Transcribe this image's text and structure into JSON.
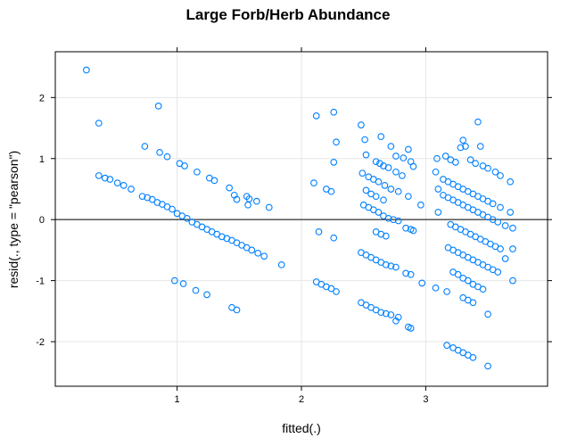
{
  "chart_data": {
    "type": "scatter",
    "title": "Large Forb/Herb Abundance",
    "xlabel": "fitted(.)",
    "ylabel": "resid(., type = \"pearson\")",
    "xlim": [
      0.02,
      3.98
    ],
    "ylim": [
      -2.73,
      2.75
    ],
    "xticks": [
      1,
      2,
      3
    ],
    "yticks": [
      -2,
      -1,
      0,
      1,
      2
    ],
    "reference_line_y": 0,
    "grid": true,
    "point_color": "#0080ff",
    "groups": [
      {
        "x0": 0.27,
        "x1": 1.84,
        "intercept": 0.95,
        "slope": -0.9
      },
      {
        "x0": 0.36,
        "x1": 1.52,
        "intercept": 2.25,
        "slope": -0.95
      },
      {
        "x0": 0.9,
        "x1": 1.5,
        "intercept": -0.38,
        "slope": -0.75
      },
      {
        "x0": 2.1,
        "x1": 2.3,
        "intercept": 0.0,
        "slope": 0.0
      },
      {
        "x0": 2.48,
        "x1": 2.92,
        "intercept": 0.0,
        "slope": -0.5
      },
      {
        "x0": 3.1,
        "x1": 3.72,
        "intercept": 0.0,
        "slope": -0.42
      }
    ],
    "points": [
      {
        "x": 0.27,
        "y": 2.45
      },
      {
        "x": 0.37,
        "y": 1.58
      },
      {
        "x": 0.85,
        "y": 1.86
      },
      {
        "x": 0.37,
        "y": 0.72
      },
      {
        "x": 0.42,
        "y": 0.68
      },
      {
        "x": 0.46,
        "y": 0.66
      },
      {
        "x": 0.52,
        "y": 0.6
      },
      {
        "x": 0.57,
        "y": 0.56
      },
      {
        "x": 0.63,
        "y": 0.5
      },
      {
        "x": 0.72,
        "y": 0.38
      },
      {
        "x": 0.76,
        "y": 0.36
      },
      {
        "x": 0.8,
        "y": 0.33
      },
      {
        "x": 0.84,
        "y": 0.28
      },
      {
        "x": 0.88,
        "y": 0.25
      },
      {
        "x": 0.92,
        "y": 0.21
      },
      {
        "x": 0.96,
        "y": 0.17
      },
      {
        "x": 1.0,
        "y": 0.1
      },
      {
        "x": 1.04,
        "y": 0.06
      },
      {
        "x": 1.08,
        "y": 0.02
      },
      {
        "x": 1.12,
        "y": -0.04
      },
      {
        "x": 1.16,
        "y": -0.08
      },
      {
        "x": 1.2,
        "y": -0.12
      },
      {
        "x": 1.24,
        "y": -0.16
      },
      {
        "x": 1.28,
        "y": -0.2
      },
      {
        "x": 1.32,
        "y": -0.24
      },
      {
        "x": 1.36,
        "y": -0.28
      },
      {
        "x": 1.4,
        "y": -0.31
      },
      {
        "x": 1.44,
        "y": -0.34
      },
      {
        "x": 1.48,
        "y": -0.38
      },
      {
        "x": 1.52,
        "y": -0.42
      },
      {
        "x": 1.56,
        "y": -0.46
      },
      {
        "x": 1.6,
        "y": -0.5
      },
      {
        "x": 1.65,
        "y": -0.55
      },
      {
        "x": 1.7,
        "y": -0.6
      },
      {
        "x": 1.84,
        "y": -0.74
      },
      {
        "x": 0.74,
        "y": 1.2
      },
      {
        "x": 0.86,
        "y": 1.1
      },
      {
        "x": 0.92,
        "y": 1.03
      },
      {
        "x": 1.02,
        "y": 0.92
      },
      {
        "x": 1.06,
        "y": 0.88
      },
      {
        "x": 1.16,
        "y": 0.78
      },
      {
        "x": 1.26,
        "y": 0.68
      },
      {
        "x": 1.3,
        "y": 0.64
      },
      {
        "x": 1.42,
        "y": 0.52
      },
      {
        "x": 1.46,
        "y": 0.4
      },
      {
        "x": 1.48,
        "y": 0.33
      },
      {
        "x": 1.56,
        "y": 0.38
      },
      {
        "x": 1.58,
        "y": 0.34
      },
      {
        "x": 1.64,
        "y": 0.3
      },
      {
        "x": 1.74,
        "y": 0.2
      },
      {
        "x": 1.57,
        "y": 0.24
      },
      {
        "x": 0.98,
        "y": -1.0
      },
      {
        "x": 1.05,
        "y": -1.05
      },
      {
        "x": 1.15,
        "y": -1.16
      },
      {
        "x": 1.24,
        "y": -1.23
      },
      {
        "x": 1.44,
        "y": -1.44
      },
      {
        "x": 1.48,
        "y": -1.48
      },
      {
        "x": 2.12,
        "y": 1.7
      },
      {
        "x": 2.26,
        "y": 1.76
      },
      {
        "x": 2.28,
        "y": 1.27
      },
      {
        "x": 2.26,
        "y": 0.94
      },
      {
        "x": 2.1,
        "y": 0.6
      },
      {
        "x": 2.2,
        "y": 0.5
      },
      {
        "x": 2.24,
        "y": 0.46
      },
      {
        "x": 2.14,
        "y": -0.2
      },
      {
        "x": 2.26,
        "y": -0.3
      },
      {
        "x": 2.12,
        "y": -1.02
      },
      {
        "x": 2.16,
        "y": -1.06
      },
      {
        "x": 2.2,
        "y": -1.1
      },
      {
        "x": 2.24,
        "y": -1.13
      },
      {
        "x": 2.28,
        "y": -1.18
      },
      {
        "x": 2.48,
        "y": 1.55
      },
      {
        "x": 2.51,
        "y": 1.31
      },
      {
        "x": 2.64,
        "y": 1.36
      },
      {
        "x": 2.72,
        "y": 1.2
      },
      {
        "x": 2.76,
        "y": 1.04
      },
      {
        "x": 2.82,
        "y": 1.01
      },
      {
        "x": 2.86,
        "y": 1.15
      },
      {
        "x": 2.88,
        "y": 0.95
      },
      {
        "x": 2.9,
        "y": 0.87
      },
      {
        "x": 2.52,
        "y": 1.06
      },
      {
        "x": 2.6,
        "y": 0.95
      },
      {
        "x": 2.63,
        "y": 0.92
      },
      {
        "x": 2.66,
        "y": 0.88
      },
      {
        "x": 2.7,
        "y": 0.85
      },
      {
        "x": 2.76,
        "y": 0.78
      },
      {
        "x": 2.81,
        "y": 0.72
      },
      {
        "x": 2.49,
        "y": 0.76
      },
      {
        "x": 2.54,
        "y": 0.7
      },
      {
        "x": 2.58,
        "y": 0.66
      },
      {
        "x": 2.62,
        "y": 0.62
      },
      {
        "x": 2.67,
        "y": 0.56
      },
      {
        "x": 2.72,
        "y": 0.5
      },
      {
        "x": 2.78,
        "y": 0.46
      },
      {
        "x": 2.86,
        "y": 0.38
      },
      {
        "x": 2.52,
        "y": 0.48
      },
      {
        "x": 2.56,
        "y": 0.42
      },
      {
        "x": 2.6,
        "y": 0.38
      },
      {
        "x": 2.66,
        "y": 0.32
      },
      {
        "x": 2.5,
        "y": 0.24
      },
      {
        "x": 2.54,
        "y": 0.2
      },
      {
        "x": 2.58,
        "y": 0.16
      },
      {
        "x": 2.62,
        "y": 0.12
      },
      {
        "x": 2.66,
        "y": 0.06
      },
      {
        "x": 2.7,
        "y": 0.02
      },
      {
        "x": 2.74,
        "y": 0.0
      },
      {
        "x": 2.78,
        "y": -0.02
      },
      {
        "x": 2.84,
        "y": -0.14
      },
      {
        "x": 2.88,
        "y": -0.16
      },
      {
        "x": 2.9,
        "y": -0.18
      },
      {
        "x": 2.6,
        "y": -0.2
      },
      {
        "x": 2.64,
        "y": -0.24
      },
      {
        "x": 2.68,
        "y": -0.27
      },
      {
        "x": 2.48,
        "y": -0.54
      },
      {
        "x": 2.52,
        "y": -0.58
      },
      {
        "x": 2.56,
        "y": -0.62
      },
      {
        "x": 2.6,
        "y": -0.66
      },
      {
        "x": 2.64,
        "y": -0.7
      },
      {
        "x": 2.68,
        "y": -0.74
      },
      {
        "x": 2.72,
        "y": -0.76
      },
      {
        "x": 2.76,
        "y": -0.78
      },
      {
        "x": 2.84,
        "y": -0.88
      },
      {
        "x": 2.88,
        "y": -0.9
      },
      {
        "x": 2.48,
        "y": -1.36
      },
      {
        "x": 2.52,
        "y": -1.4
      },
      {
        "x": 2.56,
        "y": -1.44
      },
      {
        "x": 2.6,
        "y": -1.48
      },
      {
        "x": 2.64,
        "y": -1.52
      },
      {
        "x": 2.68,
        "y": -1.54
      },
      {
        "x": 2.72,
        "y": -1.56
      },
      {
        "x": 2.78,
        "y": -1.6
      },
      {
        "x": 2.86,
        "y": -1.76
      },
      {
        "x": 2.88,
        "y": -1.78
      },
      {
        "x": 2.76,
        "y": -1.66
      },
      {
        "x": 2.96,
        "y": 0.24
      },
      {
        "x": 2.97,
        "y": -1.04
      },
      {
        "x": 3.09,
        "y": 1.0
      },
      {
        "x": 3.08,
        "y": 0.78
      },
      {
        "x": 3.1,
        "y": 0.5
      },
      {
        "x": 3.1,
        "y": 0.12
      },
      {
        "x": 3.08,
        "y": -1.12
      },
      {
        "x": 3.17,
        "y": -1.18
      },
      {
        "x": 3.16,
        "y": 1.04
      },
      {
        "x": 3.2,
        "y": 0.98
      },
      {
        "x": 3.24,
        "y": 0.94
      },
      {
        "x": 3.28,
        "y": 1.18
      },
      {
        "x": 3.3,
        "y": 1.3
      },
      {
        "x": 3.32,
        "y": 1.2
      },
      {
        "x": 3.36,
        "y": 0.98
      },
      {
        "x": 3.4,
        "y": 0.92
      },
      {
        "x": 3.44,
        "y": 1.2
      },
      {
        "x": 3.42,
        "y": 1.6
      },
      {
        "x": 3.46,
        "y": 0.88
      },
      {
        "x": 3.5,
        "y": 0.84
      },
      {
        "x": 3.56,
        "y": 0.78
      },
      {
        "x": 3.6,
        "y": 0.72
      },
      {
        "x": 3.68,
        "y": 0.62
      },
      {
        "x": 3.14,
        "y": 0.66
      },
      {
        "x": 3.18,
        "y": 0.62
      },
      {
        "x": 3.22,
        "y": 0.58
      },
      {
        "x": 3.26,
        "y": 0.54
      },
      {
        "x": 3.3,
        "y": 0.5
      },
      {
        "x": 3.34,
        "y": 0.46
      },
      {
        "x": 3.38,
        "y": 0.42
      },
      {
        "x": 3.42,
        "y": 0.38
      },
      {
        "x": 3.46,
        "y": 0.34
      },
      {
        "x": 3.5,
        "y": 0.3
      },
      {
        "x": 3.54,
        "y": 0.26
      },
      {
        "x": 3.6,
        "y": 0.2
      },
      {
        "x": 3.68,
        "y": 0.12
      },
      {
        "x": 3.14,
        "y": 0.4
      },
      {
        "x": 3.18,
        "y": 0.36
      },
      {
        "x": 3.22,
        "y": 0.32
      },
      {
        "x": 3.26,
        "y": 0.28
      },
      {
        "x": 3.3,
        "y": 0.24
      },
      {
        "x": 3.34,
        "y": 0.2
      },
      {
        "x": 3.38,
        "y": 0.16
      },
      {
        "x": 3.42,
        "y": 0.12
      },
      {
        "x": 3.46,
        "y": 0.08
      },
      {
        "x": 3.5,
        "y": 0.04
      },
      {
        "x": 3.54,
        "y": 0.0
      },
      {
        "x": 3.58,
        "y": -0.04
      },
      {
        "x": 3.64,
        "y": -0.1
      },
      {
        "x": 3.7,
        "y": -0.14
      },
      {
        "x": 3.2,
        "y": -0.08
      },
      {
        "x": 3.24,
        "y": -0.12
      },
      {
        "x": 3.28,
        "y": -0.16
      },
      {
        "x": 3.32,
        "y": -0.2
      },
      {
        "x": 3.36,
        "y": -0.24
      },
      {
        "x": 3.4,
        "y": -0.28
      },
      {
        "x": 3.44,
        "y": -0.32
      },
      {
        "x": 3.48,
        "y": -0.36
      },
      {
        "x": 3.52,
        "y": -0.4
      },
      {
        "x": 3.56,
        "y": -0.44
      },
      {
        "x": 3.6,
        "y": -0.48
      },
      {
        "x": 3.7,
        "y": -0.48
      },
      {
        "x": 3.18,
        "y": -0.46
      },
      {
        "x": 3.22,
        "y": -0.5
      },
      {
        "x": 3.26,
        "y": -0.54
      },
      {
        "x": 3.3,
        "y": -0.58
      },
      {
        "x": 3.34,
        "y": -0.62
      },
      {
        "x": 3.38,
        "y": -0.66
      },
      {
        "x": 3.42,
        "y": -0.7
      },
      {
        "x": 3.46,
        "y": -0.74
      },
      {
        "x": 3.5,
        "y": -0.78
      },
      {
        "x": 3.54,
        "y": -0.82
      },
      {
        "x": 3.58,
        "y": -0.86
      },
      {
        "x": 3.22,
        "y": -0.86
      },
      {
        "x": 3.26,
        "y": -0.9
      },
      {
        "x": 3.3,
        "y": -0.96
      },
      {
        "x": 3.34,
        "y": -1.0
      },
      {
        "x": 3.38,
        "y": -1.06
      },
      {
        "x": 3.42,
        "y": -1.1
      },
      {
        "x": 3.46,
        "y": -1.14
      },
      {
        "x": 3.3,
        "y": -1.28
      },
      {
        "x": 3.34,
        "y": -1.32
      },
      {
        "x": 3.38,
        "y": -1.36
      },
      {
        "x": 3.5,
        "y": -1.55
      },
      {
        "x": 3.7,
        "y": -1.0
      },
      {
        "x": 3.64,
        "y": -0.64
      },
      {
        "x": 3.17,
        "y": -2.06
      },
      {
        "x": 3.22,
        "y": -2.1
      },
      {
        "x": 3.26,
        "y": -2.14
      },
      {
        "x": 3.3,
        "y": -2.18
      },
      {
        "x": 3.34,
        "y": -2.22
      },
      {
        "x": 3.38,
        "y": -2.26
      },
      {
        "x": 3.5,
        "y": -2.4
      }
    ]
  }
}
